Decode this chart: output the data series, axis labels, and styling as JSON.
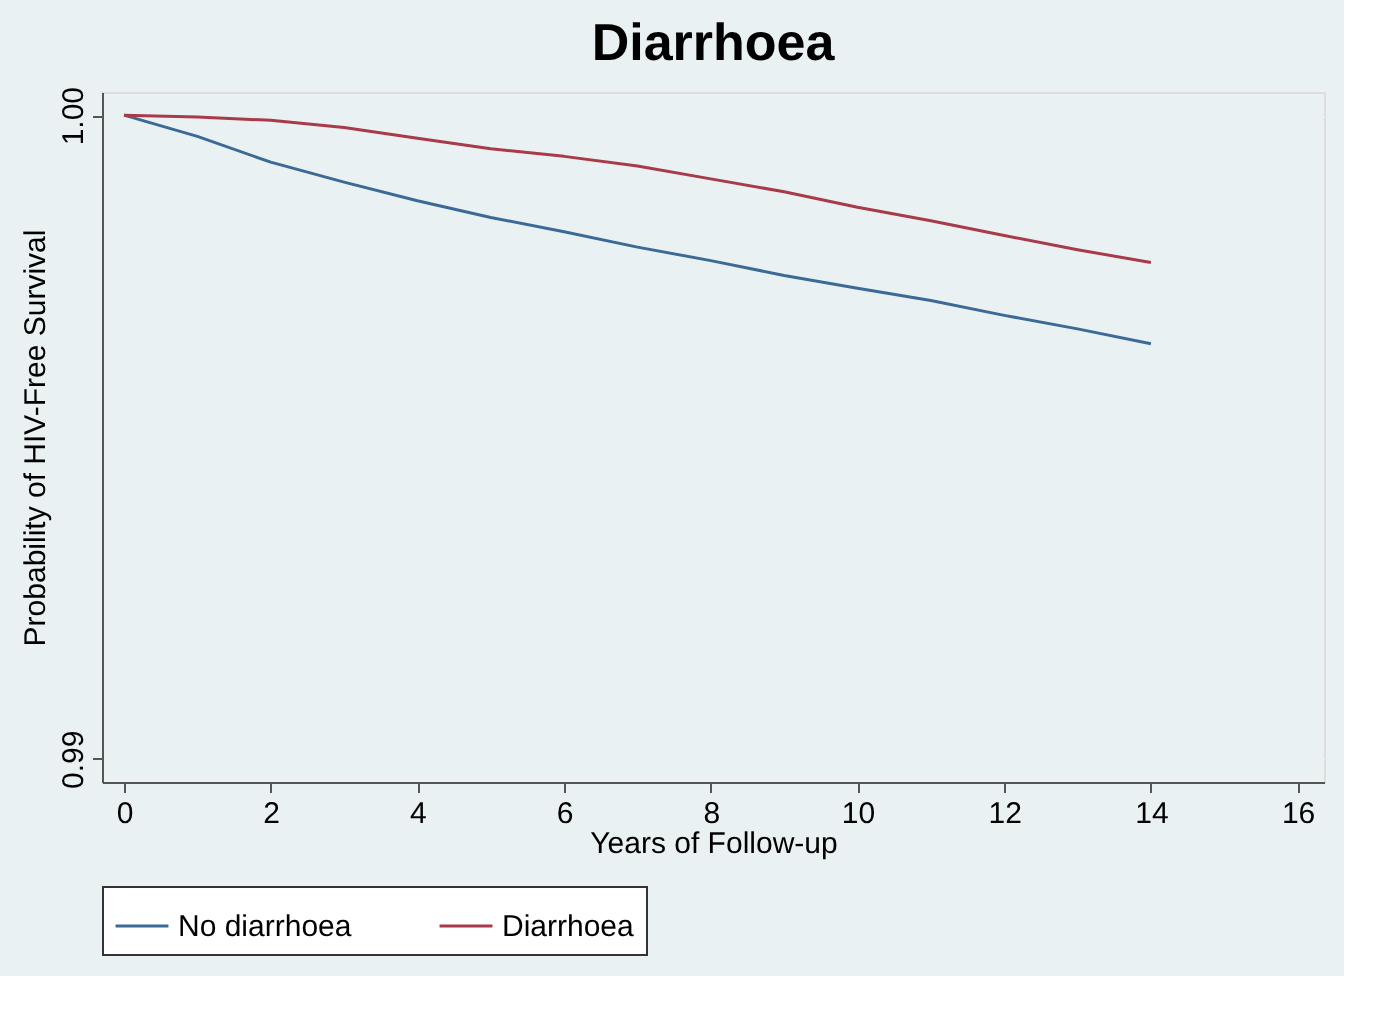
{
  "chart_data": {
    "type": "line",
    "title": "Diarrhoea",
    "xlabel": "Years of Follow-up",
    "ylabel": "Probability of HIV-Free Survival",
    "x": [
      0,
      1,
      2,
      3,
      4,
      5,
      6,
      7,
      8,
      9,
      10,
      11,
      12,
      13,
      14
    ],
    "series": [
      {
        "name": "No diarrhoea",
        "color": "#3b6a96",
        "values": [
          1.0,
          0.99967,
          0.99927,
          0.99896,
          0.99867,
          0.99841,
          0.99819,
          0.99795,
          0.99774,
          0.99751,
          0.99731,
          0.99712,
          0.99689,
          0.99668,
          0.99645
        ]
      },
      {
        "name": "Diarrhoea",
        "color": "#a83a4a",
        "values": [
          1.0,
          0.99997,
          0.99992,
          0.99981,
          0.99964,
          0.99948,
          0.99936,
          0.99921,
          0.99901,
          0.99881,
          0.99857,
          0.99836,
          0.99813,
          0.99791,
          0.99771
        ]
      }
    ],
    "xlim": [
      -0.3,
      16.36
    ],
    "xticks": [
      0,
      2,
      4,
      6,
      8,
      10,
      12,
      14,
      16
    ],
    "ylim": [
      0.98964,
      1.00036
    ],
    "yticks": [
      {
        "value": 0.99,
        "label": "0.99"
      },
      {
        "value": 1.0,
        "label": "1.00"
      }
    ],
    "grid": "y",
    "legend": "bottom",
    "marker": "none",
    "line_style": "solid"
  }
}
